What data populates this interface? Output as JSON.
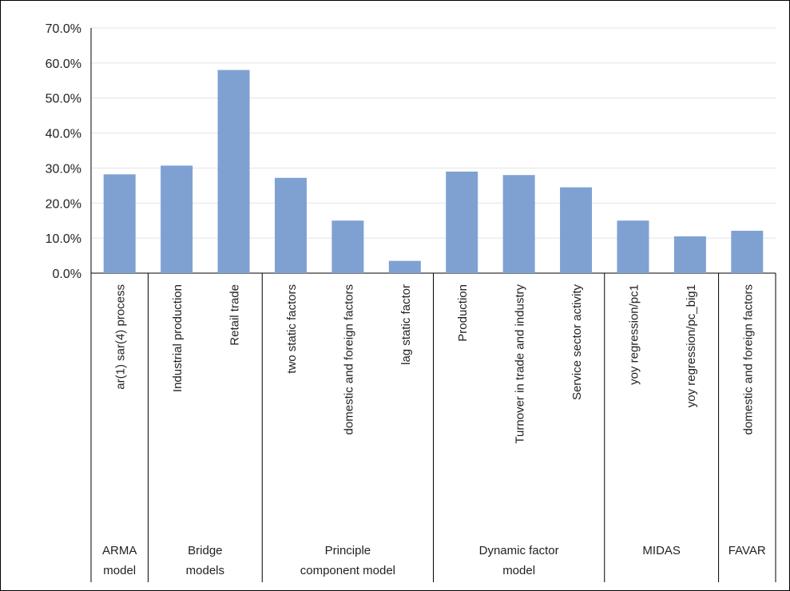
{
  "chart_data": {
    "type": "bar",
    "title": "",
    "xlabel": "",
    "ylabel": "",
    "ylim": [
      0,
      0.7
    ],
    "y_ticks": [
      0,
      0.1,
      0.2,
      0.3,
      0.4,
      0.5,
      0.6,
      0.7
    ],
    "y_tick_labels": [
      "0.0%",
      "10.0%",
      "20.0%",
      "30.0%",
      "40.0%",
      "50.0%",
      "60.0%",
      "70.0%"
    ],
    "grid": true,
    "legend": "none",
    "bar_color": "#7ea1d2",
    "categories": [
      "ar(1) sar(4) process",
      "Industrial production",
      "Retail trade",
      "two static factors",
      "domestic and foreign factors",
      "lag static factor",
      "Production",
      "Turnover in trade and industry",
      "Service sector activity",
      "yoy regression/pc1",
      "yoy regression/pc_big1",
      "domestic and foreign factors"
    ],
    "values": [
      0.282,
      0.307,
      0.58,
      0.272,
      0.15,
      0.035,
      0.29,
      0.28,
      0.245,
      0.15,
      0.105,
      0.121
    ],
    "groups": [
      {
        "label_lines": [
          "ARMA",
          "model"
        ],
        "count": 1
      },
      {
        "label_lines": [
          "Bridge",
          "models"
        ],
        "count": 2
      },
      {
        "label_lines": [
          "Principle",
          "component model"
        ],
        "count": 3
      },
      {
        "label_lines": [
          "Dynamic factor",
          "model"
        ],
        "count": 3
      },
      {
        "label_lines": [
          "MIDAS"
        ],
        "count": 2
      },
      {
        "label_lines": [
          "FAVAR"
        ],
        "count": 1
      }
    ]
  }
}
